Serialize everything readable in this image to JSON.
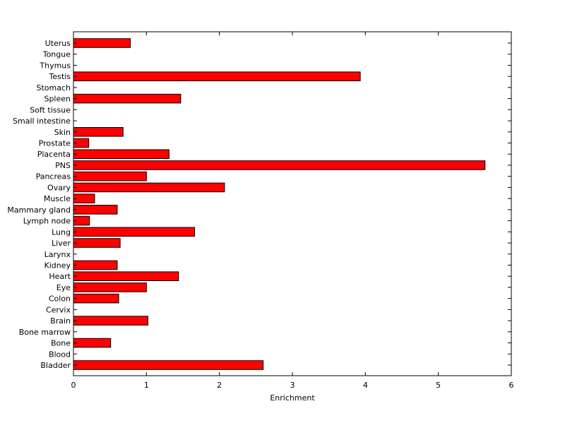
{
  "chart_data": {
    "type": "bar",
    "orientation": "horizontal",
    "categories": [
      "Uterus",
      "Tongue",
      "Thymus",
      "Testis",
      "Stomach",
      "Spleen",
      "Soft tissue",
      "Small intestine",
      "Skin",
      "Prostate",
      "Placenta",
      "PNS",
      "Pancreas",
      "Ovary",
      "Muscle",
      "Mammary gland",
      "Lymph node",
      "Lung",
      "Liver",
      "Larynx",
      "Kidney",
      "Heart",
      "Eye",
      "Colon",
      "Cervix",
      "Brain",
      "Bone marrow",
      "Bone",
      "Blood",
      "Bladder"
    ],
    "values": [
      0.78,
      0,
      0,
      3.93,
      0,
      1.47,
      0,
      0,
      0.68,
      0.21,
      1.31,
      5.64,
      1.0,
      2.07,
      0.29,
      0.6,
      0.22,
      1.66,
      0.64,
      0,
      0.6,
      1.44,
      1.0,
      0.62,
      0,
      1.02,
      0,
      0.51,
      0,
      2.6
    ],
    "xlabel": "Enrichment",
    "ylabel": "",
    "title": "",
    "xlim": [
      0,
      6
    ],
    "xticks": [
      0,
      1,
      2,
      3,
      4,
      5,
      6
    ],
    "bar_color": "#ff0000",
    "bar_edge_color": "#000000",
    "grid": false
  }
}
